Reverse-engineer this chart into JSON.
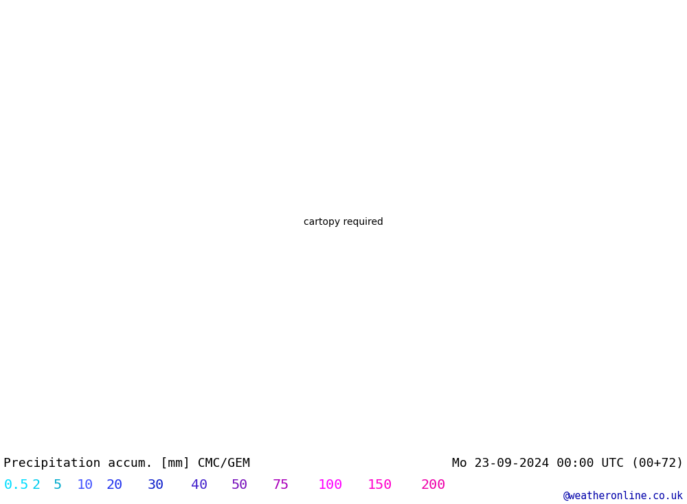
{
  "title_left": "Precipitation accum. [mm] CMC/GEM",
  "title_right": "Mo 23-09-2024 00:00 UTC (00+72)",
  "credit": "@weatheronline.co.uk",
  "legend_values": [
    0.5,
    2,
    5,
    10,
    20,
    30,
    40,
    50,
    75,
    100,
    150,
    200
  ],
  "bg_color": "#ffffff",
  "land_color": "#c8f0b0",
  "ocean_no_precip": "#e8f4ff",
  "fig_width": 10.0,
  "fig_height": 7.33,
  "map_lon_min": -100,
  "map_lon_max": 160,
  "map_lat_min": -65,
  "map_lat_max": 70,
  "precip_colors": [
    "#f0faff",
    "#c8eeff",
    "#90d8ff",
    "#55bbff",
    "#2299ee",
    "#1166dd",
    "#0044cc",
    "#0022aa",
    "#5500cc",
    "#9900cc",
    "#ff00ff",
    "#ff00aa",
    "#cc0066"
  ],
  "legend_text_colors": {
    "0.5": "#00CCFF",
    "2": "#00BBEE",
    "5": "#00AADD",
    "10": "#3355FF",
    "20": "#2244EE",
    "30": "#2233DD",
    "40": "#3322CC",
    "50": "#6611BB",
    "75": "#9900AA",
    "100": "#FF00FF",
    "150": "#FF00CC",
    "200": "#EE00BB"
  }
}
